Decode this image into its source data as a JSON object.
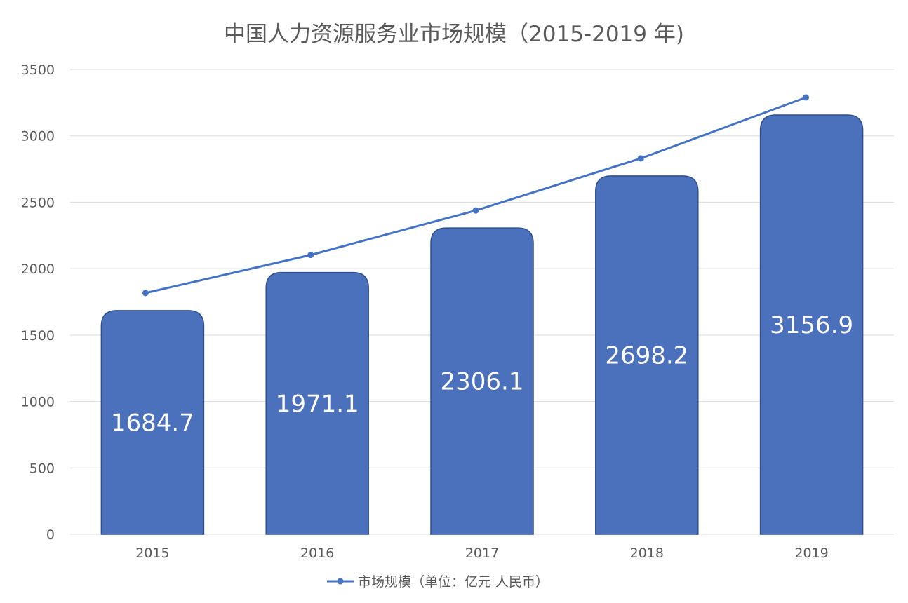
{
  "chart_data": {
    "type": "bar",
    "title": "中国人力资源服务业市场规模（2015-2019 年)",
    "categories": [
      "2015",
      "2016",
      "2017",
      "2018",
      "2019"
    ],
    "values": [
      1684.7,
      1971.1,
      2306.1,
      2698.2,
      3156.9
    ],
    "ylim": [
      0,
      3500
    ],
    "yticks": [
      0,
      500,
      1000,
      1500,
      2000,
      2500,
      3000,
      3500
    ],
    "grid": true,
    "legend": {
      "placement": "bottom",
      "entries": [
        "市场规模（单位：亿元 人民币）"
      ]
    },
    "series": [
      {
        "type": "bar",
        "values": [
          1684.7,
          1971.1,
          2306.1,
          2698.2,
          3156.9
        ],
        "data_labels": [
          "1684.7",
          "1971.1",
          "2306.1",
          "2698.2",
          "3156.9"
        ]
      },
      {
        "type": "line",
        "name": "市场规模（单位：亿元 人民币）",
        "values": [
          1684.7,
          1971.1,
          2306.1,
          2698.2,
          3156.9
        ]
      }
    ]
  },
  "colors": {
    "bar_fill": "#4b71bd",
    "bar_stroke": "#2f4f8f",
    "line": "#4472c4",
    "grid": "#d9d9d9",
    "text": "#595959",
    "label": "#ffffff"
  }
}
